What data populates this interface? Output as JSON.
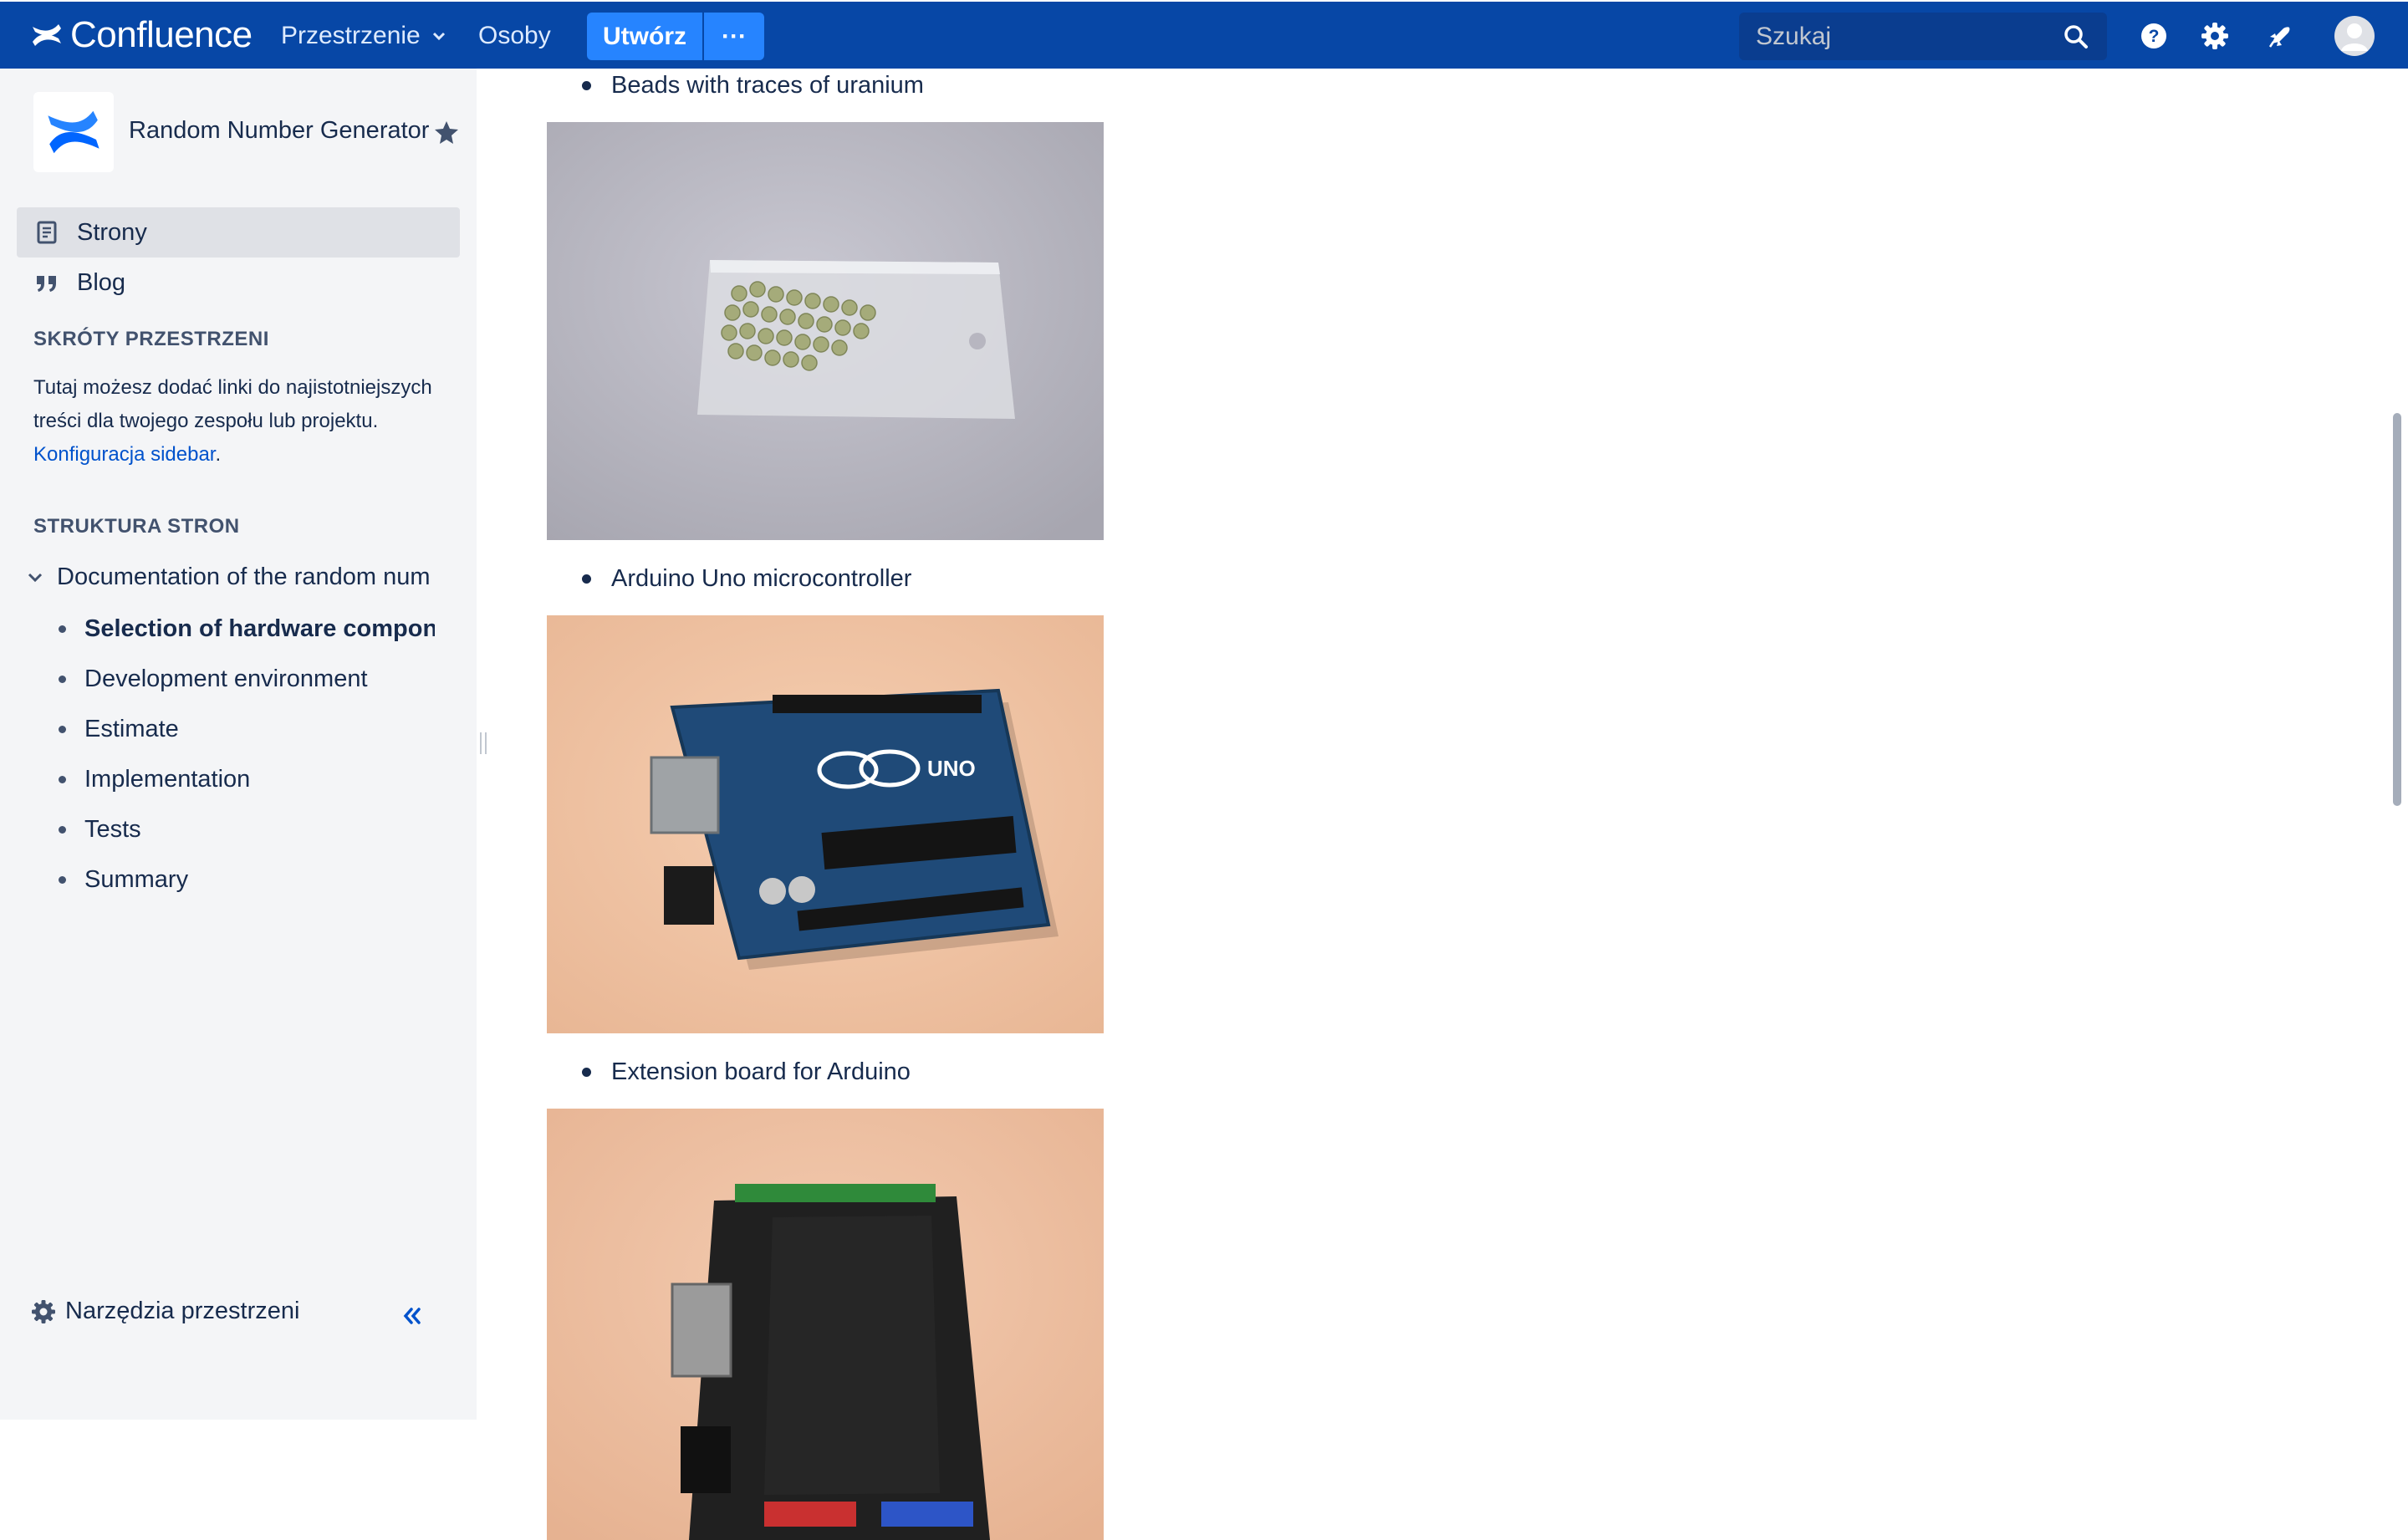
{
  "topnav": {
    "brand": "Confluence",
    "spaces_label": "Przestrzenie",
    "people_label": "Osoby",
    "create_label": "Utwórz",
    "more_label": "···",
    "search_placeholder": "Szukaj",
    "icons": [
      "confluence-logo-icon",
      "chevron-down-icon",
      "search-icon",
      "help-icon",
      "settings-icon",
      "notifications-icon",
      "avatar"
    ],
    "colors": {
      "nav_bg": "#0747a6",
      "create_bg": "#2684ff"
    }
  },
  "sidebar": {
    "space_name": "Random Number Generator",
    "nav": [
      {
        "label": "Strony",
        "icon": "pages-icon",
        "selected": true
      },
      {
        "label": "Blog",
        "icon": "quote-icon",
        "selected": false
      }
    ],
    "shortcuts_heading": "SKRÓTY PRZESTRZENI",
    "shortcuts_text": "Tutaj możesz dodać linki do najistotniejszych treści dla twojego zespołu lub projektu.",
    "shortcuts_link": "Konfiguracja sidebar",
    "shortcuts_tail": ".",
    "tree_heading": "STRUKTURA STRON",
    "tree_root": "Documentation of the random num",
    "tree_items": [
      {
        "label": "Selection of hardware compon",
        "current": true
      },
      {
        "label": "Development environment",
        "current": false
      },
      {
        "label": "Estimate",
        "current": false
      },
      {
        "label": "Implementation",
        "current": false
      },
      {
        "label": "Tests",
        "current": false
      },
      {
        "label": "Summary",
        "current": false
      }
    ],
    "tools_label": "Narzędzia przestrzeni"
  },
  "content": {
    "items": [
      {
        "bullet": "Beads with traces of uranium",
        "image": "bag-of-beads-photo"
      },
      {
        "bullet": "Arduino Uno microcontroller",
        "image": "arduino-uno-photo"
      },
      {
        "bullet": "Extension board for Arduino",
        "image": "extension-board-photo"
      }
    ]
  }
}
